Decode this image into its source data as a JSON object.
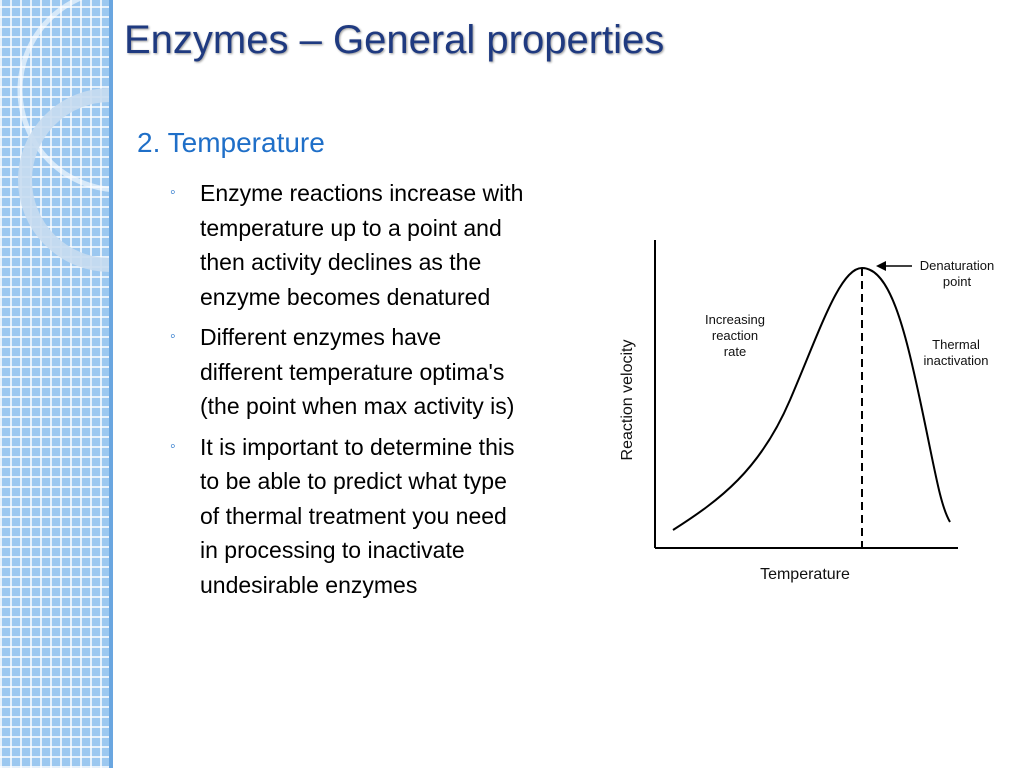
{
  "title": "Enzymes – General properties",
  "heading": "2. Temperature",
  "bullets": [
    {
      "lines": [
        "Enzyme reactions increase with",
        "temperature up to a point and",
        "then activity declines as the",
        "enzyme becomes denatured"
      ]
    },
    {
      "lines": [
        "Different enzymes have",
        "different temperature optima's",
        "(the point when max activity is)"
      ]
    },
    {
      "lines": [
        "It is important to determine this",
        "to be able to predict what type",
        "of thermal treatment you need",
        "in processing to inactivate",
        "undesirable enzymes"
      ]
    }
  ],
  "diagram": {
    "y_axis_label": "Reaction velocity",
    "x_axis_label": "Temperature",
    "labels": [
      {
        "lines": [
          "Denaturation",
          "point"
        ]
      },
      {
        "lines": [
          "Increasing",
          "reaction",
          "rate"
        ]
      },
      {
        "lines": [
          "Thermal",
          "inactivation"
        ]
      }
    ]
  }
}
